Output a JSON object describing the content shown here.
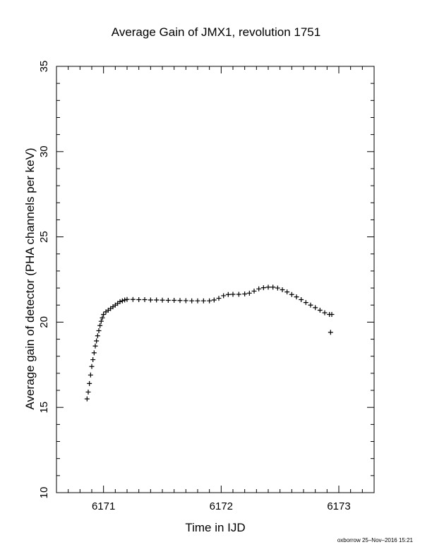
{
  "chart_data": {
    "type": "scatter",
    "title": "Average Gain of JMX1, revolution 1751",
    "xlabel": "Time in IJD",
    "ylabel": "Average gain of detector (PHA channels per keV)",
    "xlim": [
      6170.6,
      6173.3
    ],
    "ylim": [
      10,
      35
    ],
    "xticks": [
      6171,
      6172,
      6173
    ],
    "yticks": [
      10,
      15,
      20,
      25,
      30,
      35
    ],
    "marker": "plus",
    "grid": false,
    "series": [
      {
        "values": [
          [
            6170.86,
            15.5
          ],
          [
            6170.87,
            15.9
          ],
          [
            6170.88,
            16.4
          ],
          [
            6170.89,
            16.9
          ],
          [
            6170.9,
            17.4
          ],
          [
            6170.91,
            17.8
          ],
          [
            6170.92,
            18.2
          ],
          [
            6170.93,
            18.6
          ],
          [
            6170.94,
            18.9
          ],
          [
            6170.95,
            19.2
          ],
          [
            6170.96,
            19.5
          ],
          [
            6170.97,
            19.8
          ],
          [
            6170.98,
            20.05
          ],
          [
            6170.99,
            20.25
          ],
          [
            6171.0,
            20.45
          ],
          [
            6171.02,
            20.6
          ],
          [
            6171.04,
            20.7
          ],
          [
            6171.06,
            20.8
          ],
          [
            6171.08,
            20.9
          ],
          [
            6171.1,
            21.0
          ],
          [
            6171.12,
            21.1
          ],
          [
            6171.14,
            21.2
          ],
          [
            6171.16,
            21.25
          ],
          [
            6171.18,
            21.3
          ],
          [
            6171.2,
            21.33
          ],
          [
            6171.25,
            21.33
          ],
          [
            6171.3,
            21.32
          ],
          [
            6171.35,
            21.32
          ],
          [
            6171.4,
            21.3
          ],
          [
            6171.45,
            21.3
          ],
          [
            6171.5,
            21.29
          ],
          [
            6171.55,
            21.28
          ],
          [
            6171.6,
            21.28
          ],
          [
            6171.65,
            21.27
          ],
          [
            6171.7,
            21.26
          ],
          [
            6171.75,
            21.25
          ],
          [
            6171.8,
            21.25
          ],
          [
            6171.85,
            21.25
          ],
          [
            6171.9,
            21.25
          ],
          [
            6171.94,
            21.3
          ],
          [
            6171.98,
            21.4
          ],
          [
            6172.02,
            21.55
          ],
          [
            6172.06,
            21.62
          ],
          [
            6172.1,
            21.63
          ],
          [
            6172.15,
            21.63
          ],
          [
            6172.2,
            21.65
          ],
          [
            6172.24,
            21.7
          ],
          [
            6172.28,
            21.82
          ],
          [
            6172.32,
            21.95
          ],
          [
            6172.36,
            22.02
          ],
          [
            6172.4,
            22.05
          ],
          [
            6172.44,
            22.05
          ],
          [
            6172.48,
            22.0
          ],
          [
            6172.52,
            21.9
          ],
          [
            6172.56,
            21.77
          ],
          [
            6172.6,
            21.62
          ],
          [
            6172.64,
            21.48
          ],
          [
            6172.68,
            21.32
          ],
          [
            6172.72,
            21.15
          ],
          [
            6172.76,
            21.0
          ],
          [
            6172.8,
            20.85
          ],
          [
            6172.84,
            20.7
          ],
          [
            6172.88,
            20.55
          ],
          [
            6172.92,
            20.45
          ],
          [
            6172.94,
            20.45
          ],
          [
            6172.93,
            19.4
          ]
        ]
      }
    ]
  },
  "footer": "oxborrow 25–Nov–2016 15:21"
}
